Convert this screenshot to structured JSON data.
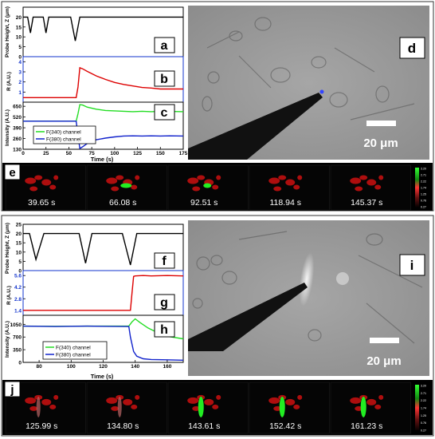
{
  "figure": {
    "top": {
      "panel_letters": {
        "a": "a",
        "b": "b",
        "c": "c",
        "d": "d",
        "e": "e"
      },
      "z_ylabel": "Probe Height, Z (μm)",
      "r_ylabel": "R (A.U.)",
      "i_ylabel": "Intensity (A.U.)",
      "xlabel": "Time (s)",
      "z_ticks": [
        "0",
        "5",
        "10",
        "15",
        "20"
      ],
      "r_ticks": [
        "1",
        "2",
        "3",
        "4"
      ],
      "i_ticks": [
        "130",
        "260",
        "390",
        "520",
        "650"
      ],
      "x_ticks": [
        "0",
        "25",
        "50",
        "75",
        "100",
        "125",
        "150",
        "175"
      ],
      "legend": [
        "F(340) channel",
        "F(380) channel"
      ],
      "scale_bar": "20 μm",
      "frames": [
        "39.65 s",
        "66.08 s",
        "92.51 s",
        "118.94 s",
        "145.37 s"
      ],
      "colorbar_ticks": [
        "3.20",
        "2.71",
        "2.22",
        "1.74",
        "1.25",
        "0.76",
        "0.27"
      ]
    },
    "bottom": {
      "panel_letters": {
        "f": "f",
        "g": "g",
        "h": "h",
        "i": "i",
        "j": "j"
      },
      "z_ylabel": "Probe Height, Z (μm)",
      "r_ylabel": "R (A.U.)",
      "i_ylabel": "Intensity (A.U.)",
      "xlabel": "Time (s)",
      "z_ticks": [
        "0",
        "5",
        "10",
        "15",
        "20",
        "25"
      ],
      "r_ticks": [
        "1.4",
        "2.8",
        "4.2",
        "5.6"
      ],
      "i_ticks": [
        "0",
        "350",
        "700",
        "1050"
      ],
      "x_ticks": [
        "80",
        "100",
        "120",
        "140",
        "160"
      ],
      "legend": [
        "F(340) channel",
        "F(380) channel"
      ],
      "scale_bar": "20 μm",
      "frames": [
        "125.99 s",
        "134.80 s",
        "143.61 s",
        "152.42 s",
        "161.23 s"
      ],
      "colorbar_ticks": [
        "3.20",
        "2.71",
        "2.22",
        "1.74",
        "1.25",
        "0.76",
        "0.27"
      ]
    }
  },
  "chart_data": [
    {
      "type": "line",
      "panel": "a",
      "ylim": [
        0,
        25
      ],
      "xlim": [
        0,
        175
      ],
      "series": [
        {
          "color": "#000000",
          "x": [
            0,
            5,
            8,
            11,
            22,
            25,
            28,
            52,
            57,
            62,
            175
          ],
          "y": [
            20,
            20,
            12,
            20,
            20,
            12,
            20,
            20,
            8,
            20,
            20
          ]
        }
      ]
    },
    {
      "type": "line",
      "panel": "b",
      "ylim": [
        0,
        4.5
      ],
      "xlim": [
        0,
        175
      ],
      "series": [
        {
          "color": "#dd0000",
          "x": [
            0,
            10,
            58,
            60,
            62,
            65,
            70,
            80,
            90,
            100,
            110,
            120,
            130,
            140,
            150,
            160,
            175
          ],
          "y": [
            0.45,
            0.45,
            0.45,
            1.5,
            3.4,
            3.3,
            3.05,
            2.6,
            2.25,
            1.95,
            1.75,
            1.6,
            1.45,
            1.4,
            1.3,
            1.3,
            1.3
          ]
        }
      ]
    },
    {
      "type": "line",
      "panel": "c",
      "ylim": [
        130,
        700
      ],
      "xlim": [
        0,
        175
      ],
      "series": [
        {
          "name": "F(340) channel",
          "color": "#22dd22",
          "x": [
            0,
            20,
            40,
            58,
            60,
            62,
            65,
            70,
            80,
            90,
            100,
            110,
            120,
            130,
            140,
            150,
            160,
            175
          ],
          "y": [
            470,
            470,
            470,
            470,
            560,
            670,
            665,
            640,
            615,
            600,
            595,
            590,
            585,
            590,
            585,
            590,
            588,
            585
          ]
        },
        {
          "name": "F(380) channel",
          "color": "#1122cc",
          "x": [
            0,
            20,
            40,
            58,
            60,
            62,
            65,
            70,
            80,
            90,
            100,
            110,
            120,
            130,
            140,
            150,
            160,
            175
          ],
          "y": [
            470,
            470,
            470,
            470,
            300,
            140,
            160,
            200,
            245,
            265,
            280,
            290,
            292,
            290,
            292,
            290,
            292,
            290
          ]
        }
      ]
    },
    {
      "type": "line",
      "panel": "f",
      "ylim": [
        0,
        25
      ],
      "xlim": [
        70,
        170
      ],
      "series": [
        {
          "color": "#000000",
          "x": [
            70,
            74,
            78,
            83,
            105,
            109,
            113,
            132,
            137,
            141,
            170
          ],
          "y": [
            20,
            20,
            6,
            20,
            20,
            4,
            20,
            20,
            3,
            20,
            20
          ]
        }
      ]
    },
    {
      "type": "line",
      "panel": "g",
      "ylim": [
        0.8,
        6.2
      ],
      "xlim": [
        70,
        170
      ],
      "series": [
        {
          "color": "#dd0000",
          "x": [
            70,
            100,
            137,
            138,
            139,
            140,
            145,
            150,
            160,
            170
          ],
          "y": [
            1.4,
            1.4,
            1.4,
            3.5,
            5.5,
            5.55,
            5.6,
            5.55,
            5.6,
            5.55
          ]
        }
      ]
    },
    {
      "type": "line",
      "panel": "h",
      "ylim": [
        0,
        1300
      ],
      "xlim": [
        70,
        170
      ],
      "series": [
        {
          "name": "F(340) channel",
          "color": "#22dd22",
          "x": [
            70,
            90,
            110,
            136,
            138,
            140,
            143,
            148,
            155,
            160,
            170
          ],
          "y": [
            1000,
            995,
            1000,
            1000,
            1120,
            1200,
            1100,
            950,
            800,
            720,
            650
          ]
        },
        {
          "name": "F(380) channel",
          "color": "#1122cc",
          "x": [
            70,
            90,
            110,
            136,
            137,
            139,
            141,
            145,
            150,
            160,
            170
          ],
          "y": [
            1000,
            990,
            1000,
            990,
            700,
            300,
            170,
            100,
            80,
            70,
            60
          ]
        }
      ]
    }
  ]
}
